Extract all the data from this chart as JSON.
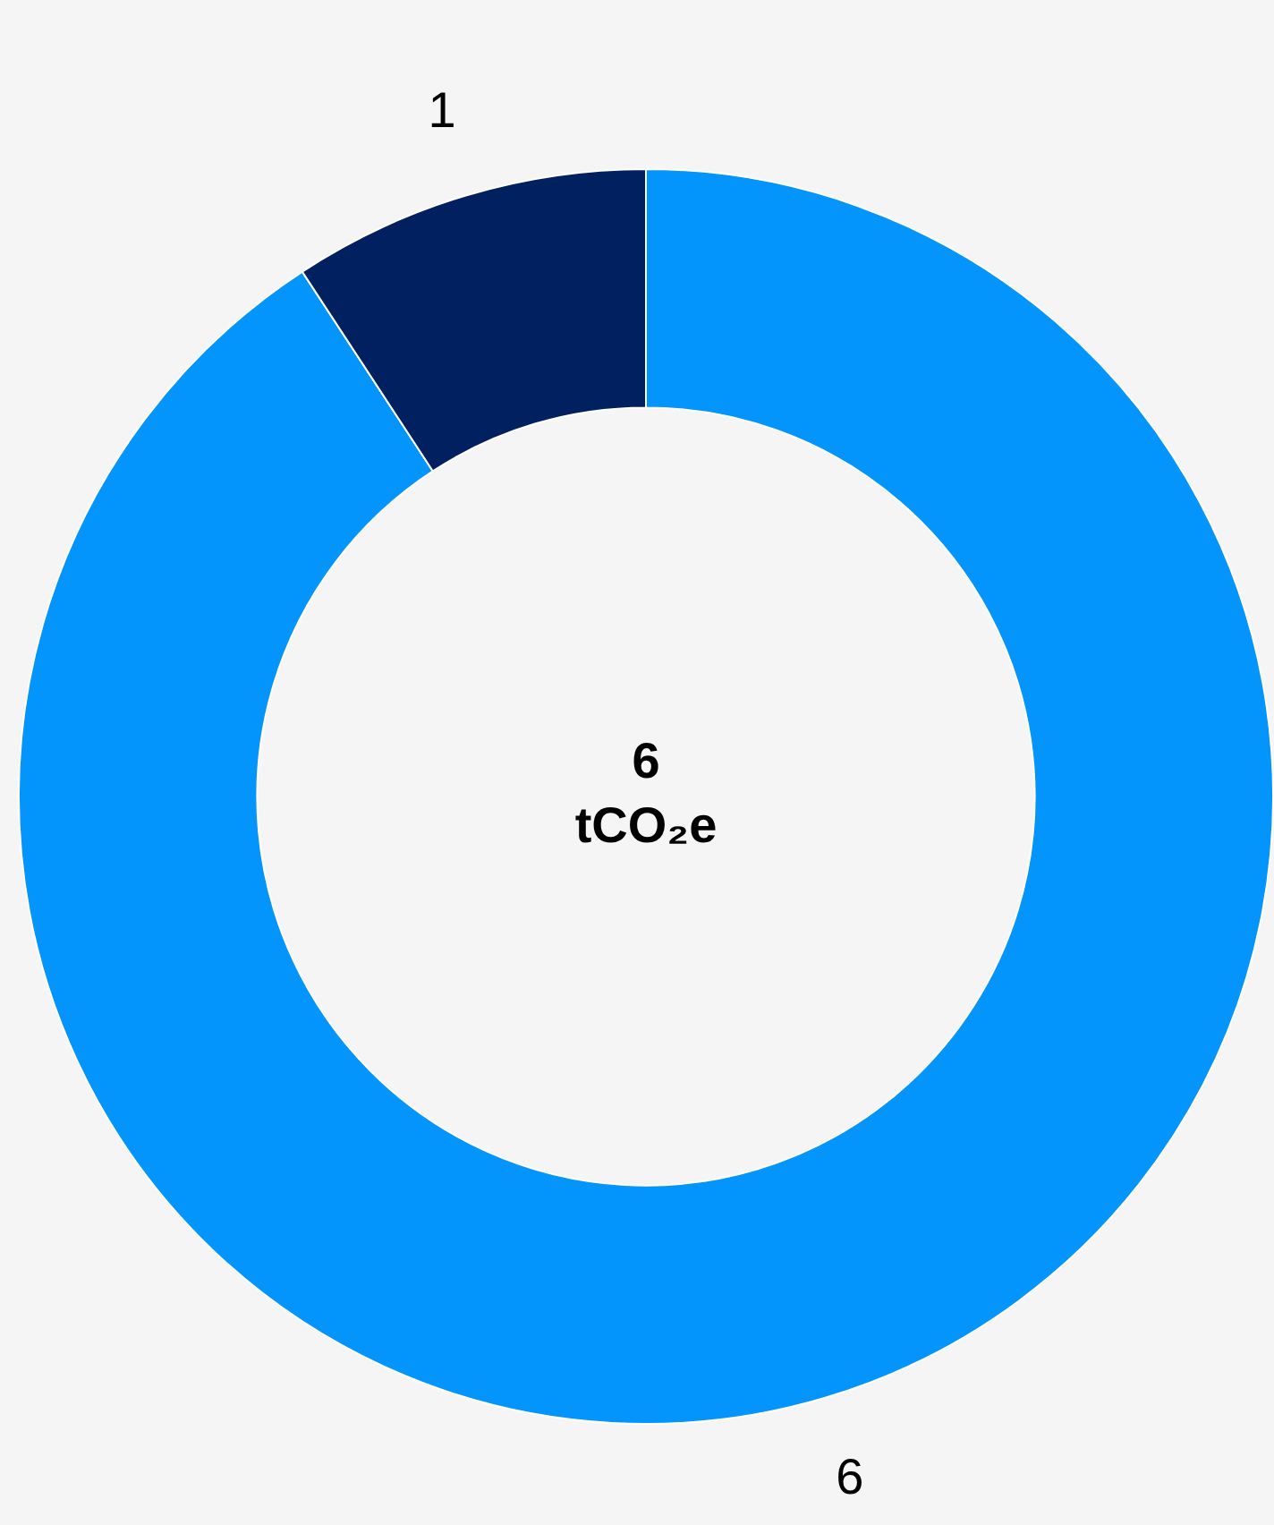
{
  "chart_data": {
    "type": "donut",
    "categories": [
      null,
      null
    ],
    "values": [
      5.9,
      0.6
    ],
    "colors": [
      "#0394fc",
      "#002060"
    ],
    "value_labels": [
      "6",
      "1"
    ],
    "annotations": [
      "6",
      "tCO₂e"
    ],
    "legend": false
  }
}
